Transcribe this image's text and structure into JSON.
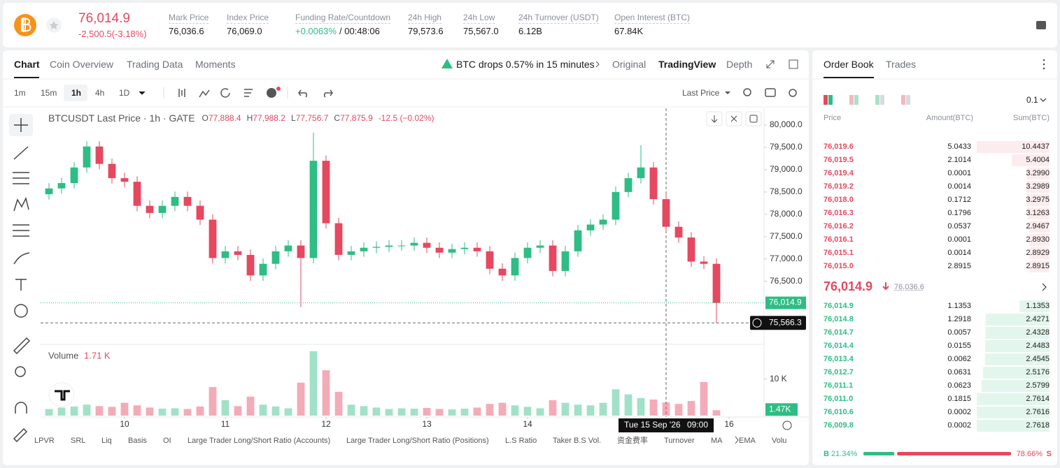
{
  "header": {
    "price": "76,014.9",
    "change": "-2,500.5(-3.18%)",
    "stats": [
      {
        "label": "Mark Price",
        "value": "76,036.6"
      },
      {
        "label": "Index Price",
        "value": "76,069.0"
      },
      {
        "label": "Funding Rate/Countdown",
        "value": "+0.0063%",
        "extra": "/ 00:48:06"
      },
      {
        "label": "24h High",
        "value": "79,573.6"
      },
      {
        "label": "24h Low",
        "value": "75,567.0"
      },
      {
        "label": "24h Turnover (USDT)",
        "value": "6.12B"
      },
      {
        "label": "Open Interest (BTC)",
        "value": "67.84K"
      }
    ]
  },
  "tabs": [
    "Chart",
    "Coin Overview",
    "Trading Data",
    "Moments"
  ],
  "alert": "BTC drops 0.57% in 15 minutes",
  "views": [
    "Original",
    "TradingView",
    "Depth"
  ],
  "intervals": [
    "1m",
    "15m",
    "1h",
    "4h",
    "1D"
  ],
  "price_type": "Last Price",
  "indicators": [
    "LPVR",
    "SRL",
    "Liq",
    "Basis",
    "OI",
    "Large Trader Long/Short Ratio (Accounts)",
    "Large Trader Long/Short Ratio (Positions)",
    "L.S Ratio",
    "Taker B.S Vol.",
    "资金费率",
    "Turnover",
    "MA",
    "EMA",
    "Volu"
  ],
  "chart_data": {
    "type": "candlestick",
    "title": "BTCUSDT Last Price · 1h · GATE",
    "legend": [
      {
        "key": "O",
        "value": "77,888.4"
      },
      {
        "key": "H",
        "value": "77,988.2"
      },
      {
        "key": "L",
        "value": "77,756.7"
      },
      {
        "key": "C",
        "value": "77,875.9"
      }
    ],
    "legend_change": "-12.5 (−0.02%)",
    "x": [
      -18,
      -15,
      -12,
      -9,
      -6,
      -3,
      0,
      3,
      6,
      9,
      12,
      15,
      18,
      21,
      24,
      27,
      30,
      33,
      36,
      39,
      42,
      45,
      48,
      51,
      54,
      57,
      60,
      63,
      66,
      69,
      72,
      75,
      78,
      81,
      84,
      87,
      90,
      93,
      96,
      99,
      102,
      105,
      108,
      111,
      114,
      117,
      120,
      123,
      126,
      129,
      132,
      135,
      138,
      141
    ],
    "open": [
      78450,
      78580,
      78700,
      79050,
      79520,
      79130,
      78810,
      78730,
      78190,
      78030,
      78190,
      78390,
      78190,
      77880,
      77020,
      77170,
      77090,
      76630,
      76890,
      77170,
      77300,
      77020,
      79200,
      77800,
      77090,
      77170,
      77250,
      77270,
      77300,
      77300,
      77360,
      77250,
      77140,
      77220,
      77250,
      77170,
      76780,
      76630,
      77020,
      77250,
      77300,
      76730,
      77170,
      77640,
      77770,
      77880,
      78500,
      78810,
      79050,
      78340,
      77720,
      77480,
      76940,
      76890
    ],
    "high": [
      78700,
      78820,
      79170,
      79640,
      79640,
      79250,
      78930,
      78850,
      78310,
      78310,
      78510,
      78510,
      78310,
      78000,
      77290,
      77290,
      77210,
      77010,
      77290,
      77420,
      77420,
      79830,
      79320,
      77920,
      77290,
      77370,
      77390,
      77420,
      77420,
      77480,
      77480,
      77370,
      77340,
      77370,
      77370,
      77290,
      76900,
      77140,
      77370,
      77420,
      77420,
      77290,
      77760,
      77890,
      78000,
      78620,
      78930,
      79550,
      79170,
      78460,
      77840,
      77600,
      77060,
      77010
    ],
    "low": [
      78330,
      78460,
      78580,
      78930,
      79010,
      78690,
      78610,
      78070,
      77910,
      77910,
      78070,
      78070,
      77760,
      76900,
      76900,
      76970,
      76510,
      76510,
      76770,
      77050,
      75920,
      76900,
      77680,
      76970,
      76970,
      77050,
      77130,
      77150,
      77180,
      77180,
      77130,
      77020,
      77020,
      77100,
      77050,
      76660,
      76510,
      76510,
      76900,
      77130,
      76610,
      76610,
      77050,
      77520,
      77650,
      77760,
      78380,
      78690,
      78220,
      77600,
      77360,
      76820,
      76770,
      75560
    ],
    "close": [
      78580,
      78700,
      79050,
      79520,
      79130,
      78810,
      78730,
      78190,
      78030,
      78190,
      78390,
      78190,
      77880,
      77020,
      77170,
      77090,
      76630,
      76890,
      77170,
      77300,
      77020,
      79200,
      77800,
      77090,
      77170,
      77250,
      77270,
      77300,
      77300,
      77360,
      77250,
      77140,
      77220,
      77250,
      77170,
      76780,
      76630,
      77020,
      77250,
      77300,
      76730,
      77170,
      77640,
      77770,
      77880,
      78500,
      78810,
      79050,
      78340,
      77720,
      77480,
      76940,
      76890,
      76014.9
    ],
    "volume": [
      1800,
      2200,
      2500,
      3000,
      2600,
      2400,
      3500,
      2800,
      2200,
      1900,
      2000,
      1800,
      2500,
      7800,
      4200,
      2600,
      5200,
      3000,
      2500,
      2000,
      9000,
      17600,
      12400,
      6500,
      3000,
      2600,
      2200,
      1800,
      2000,
      1900,
      2100,
      1800,
      1700,
      1900,
      2200,
      3200,
      3500,
      2800,
      2400,
      2000,
      4200,
      3500,
      3000,
      2800,
      3500,
      7200,
      5800,
      4800,
      4400,
      3600,
      3200,
      4000,
      9200,
      1470
    ],
    "xlim": [
      -20,
      152
    ],
    "xticks": [
      {
        "value": 0,
        "label": "10"
      },
      {
        "value": 24,
        "label": "11"
      },
      {
        "value": 48,
        "label": "12"
      },
      {
        "value": 72,
        "label": "13"
      },
      {
        "value": 96,
        "label": "14"
      },
      {
        "value": 144,
        "label": "16"
      }
    ],
    "ylim": [
      75100,
      80330
    ],
    "yticks": [
      {
        "value": 76500,
        "label": "76,500.0"
      },
      {
        "value": 77000,
        "label": "77,000.0"
      },
      {
        "value": 77500,
        "label": "77,500.0"
      },
      {
        "value": 78000,
        "label": "78,000.0"
      },
      {
        "value": 78500,
        "label": "78,500.0"
      },
      {
        "value": 79000,
        "label": "79,000.0"
      },
      {
        "value": 79500,
        "label": "79,500.0"
      },
      {
        "value": 80000,
        "label": "80,000.0"
      }
    ],
    "up_color": "#2ebd85",
    "down_color": "#e5485f",
    "last_price_label": "76,014.9",
    "crosshair": {
      "price": 75566.3,
      "label": "75,566.3",
      "date": "Tue 15 Sep '26",
      "time": "09:00"
    },
    "volume_title": "Volume",
    "volume_legend": "1.71 K",
    "volume_ylim": [
      0,
      18700
    ],
    "volume_yticks": [
      {
        "value": 10000,
        "label": "10 K"
      }
    ],
    "last_volume_label": "1.47K"
  },
  "order_book": {
    "tabs": [
      "Order Book",
      "Trades"
    ],
    "precision": "0.1",
    "columns": [
      "Price",
      "Amount(BTC)",
      "Sum(BTC)"
    ],
    "asks": [
      {
        "price": "76,019.6",
        "amount": "5.0433",
        "sum": "10.4437"
      },
      {
        "price": "76,019.5",
        "amount": "2.1014",
        "sum": "5.4004"
      },
      {
        "price": "76,019.4",
        "amount": "0.0001",
        "sum": "3.2990"
      },
      {
        "price": "76,019.2",
        "amount": "0.0014",
        "sum": "3.2989"
      },
      {
        "price": "76,018.0",
        "amount": "0.1712",
        "sum": "3.2975"
      },
      {
        "price": "76,016.3",
        "amount": "0.1796",
        "sum": "3.1263"
      },
      {
        "price": "76,016.2",
        "amount": "0.0537",
        "sum": "2.9467"
      },
      {
        "price": "76,016.1",
        "amount": "0.0001",
        "sum": "2.8930"
      },
      {
        "price": "76,015.1",
        "amount": "0.0014",
        "sum": "2.8929"
      },
      {
        "price": "76,015.0",
        "amount": "2.8915",
        "sum": "2.8915"
      }
    ],
    "mid": {
      "price": "76,014.9",
      "mark": "76,036.6"
    },
    "bids": [
      {
        "price": "76,014.9",
        "amount": "1.1353",
        "sum": "1.1353"
      },
      {
        "price": "76,014.8",
        "amount": "1.2918",
        "sum": "2.4271"
      },
      {
        "price": "76,014.7",
        "amount": "0.0057",
        "sum": "2.4328"
      },
      {
        "price": "76,014.4",
        "amount": "0.0155",
        "sum": "2.4483"
      },
      {
        "price": "76,013.4",
        "amount": "0.0062",
        "sum": "2.4545"
      },
      {
        "price": "76,012.7",
        "amount": "0.0631",
        "sum": "2.5176"
      },
      {
        "price": "76,011.1",
        "amount": "0.0623",
        "sum": "2.5799"
      },
      {
        "price": "76,011.0",
        "amount": "0.1815",
        "sum": "2.7614"
      },
      {
        "price": "76,010.6",
        "amount": "0.0002",
        "sum": "2.7616"
      },
      {
        "price": "76,009.8",
        "amount": "0.0002",
        "sum": "2.7618"
      }
    ],
    "ratio": {
      "buy_side": "B",
      "buy": 21.34,
      "buy_label": "21.34%",
      "sell": 78.66,
      "sell_label": "78.66%",
      "sell_side": "S"
    }
  }
}
